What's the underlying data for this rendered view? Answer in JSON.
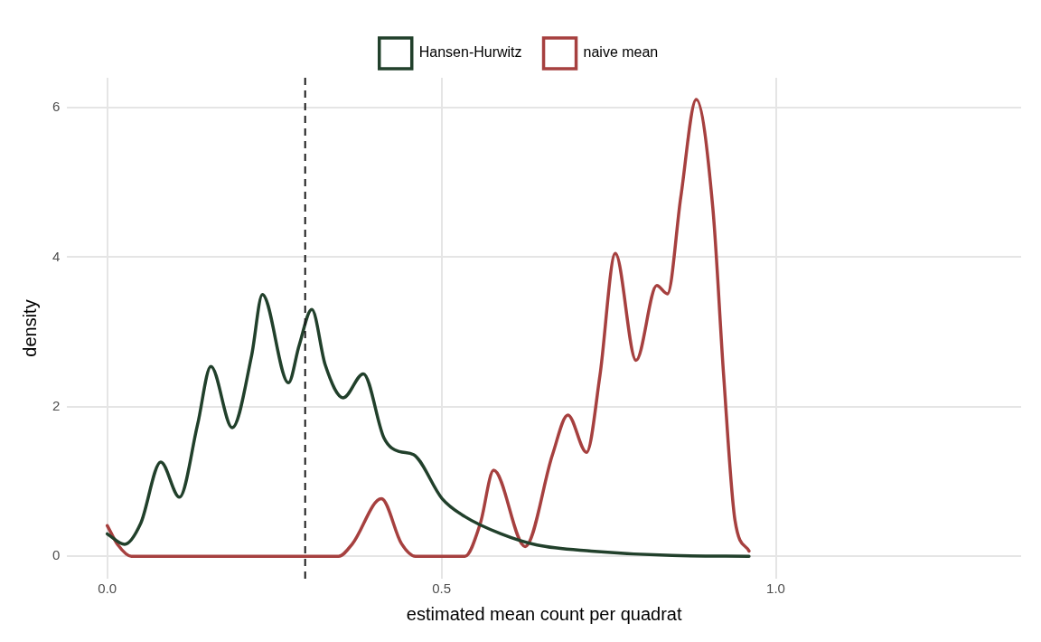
{
  "chart_data": {
    "type": "line",
    "xlabel": "estimated mean count per quadrat",
    "ylabel": "density",
    "xlim": [
      -0.06,
      1.367
    ],
    "ylim": [
      -0.3,
      6.4
    ],
    "xticks": [
      {
        "value": 0,
        "label": "0.0"
      },
      {
        "value": 0.5,
        "label": "0.5"
      },
      {
        "value": 1,
        "label": "1.0"
      }
    ],
    "yticks": [
      0,
      2,
      4,
      6
    ],
    "grid": true,
    "legend": "top",
    "marker": "none",
    "line_style": "solid",
    "ref_lines": [
      {
        "axis": "x",
        "value": 0.296,
        "line_style": "dashed",
        "color": "#1a1a1a"
      }
    ],
    "series": [
      {
        "name": "Hansen-Hurwitz",
        "color": "#21402b",
        "x": [
          0,
          0.026,
          0.05,
          0.08,
          0.108,
          0.135,
          0.155,
          0.187,
          0.216,
          0.232,
          0.271,
          0.287,
          0.306,
          0.326,
          0.353,
          0.383,
          0.414,
          0.437,
          0.458,
          0.501,
          0.535,
          0.589,
          0.643,
          0.724,
          0.845,
          0.96
        ],
        "values": [
          0.3,
          0.16,
          0.44,
          1.26,
          0.79,
          1.76,
          2.54,
          1.72,
          2.69,
          3.5,
          2.32,
          2.82,
          3.3,
          2.56,
          2.12,
          2.44,
          1.58,
          1.4,
          1.36,
          0.77,
          0.53,
          0.3,
          0.15,
          0.07,
          0.01,
          0
        ]
      },
      {
        "name": "naive mean",
        "color": "#a6403f",
        "x": [
          0,
          0.016,
          0.036,
          0.346,
          0.367,
          0.41,
          0.44,
          0.461,
          0.535,
          0.558,
          0.578,
          0.625,
          0.666,
          0.689,
          0.717,
          0.737,
          0.76,
          0.791,
          0.822,
          0.838,
          0.858,
          0.881,
          0.906,
          0.922,
          0.939,
          0.96
        ],
        "values": [
          0.41,
          0.15,
          0,
          0,
          0.17,
          0.77,
          0.17,
          0,
          0,
          0.44,
          1.15,
          0.13,
          1.36,
          1.89,
          1.39,
          2.42,
          4.05,
          2.62,
          3.62,
          3.51,
          4.81,
          6.11,
          4.64,
          2.42,
          0.48,
          0.07
        ]
      }
    ]
  }
}
